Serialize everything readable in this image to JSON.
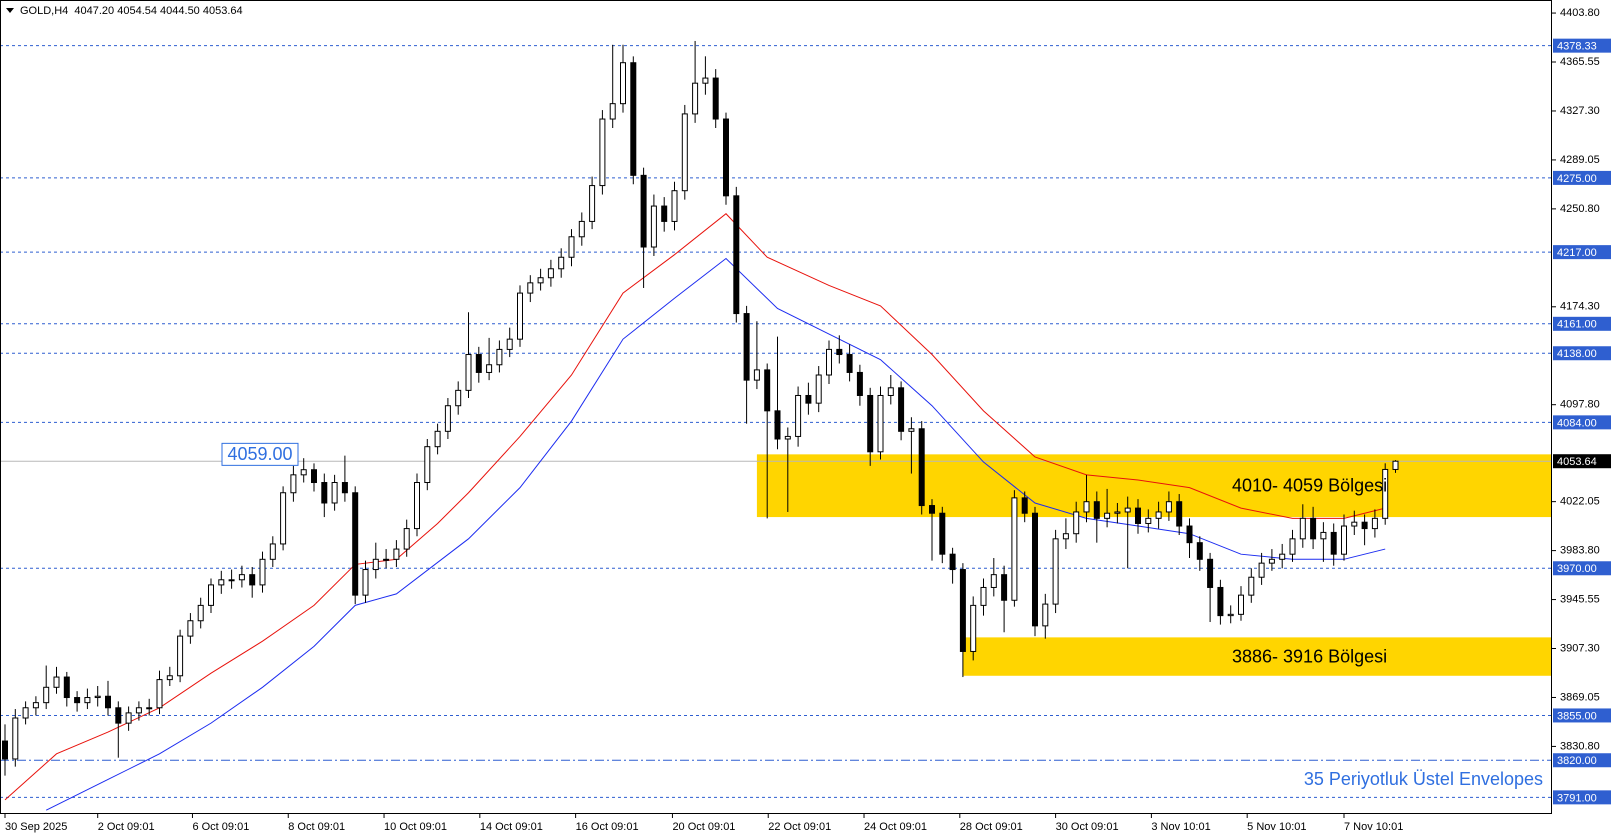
{
  "chart_data": {
    "type": "candlestick",
    "header": "GOLD,H4  4047.20 4054.54 4044.50 4053.64",
    "open": [
      3835,
      3821,
      3853,
      3861,
      3865,
      3877,
      3885,
      3869,
      3865,
      3869,
      3870,
      3861,
      3849,
      3857,
      3861,
      3861,
      3883,
      3886,
      3917,
      3929,
      3941,
      3957,
      3961,
      3961,
      3965,
      3957,
      3977,
      3989,
      4029,
      4043,
      4047,
      4037,
      4021,
      4037,
      4029,
      3949,
      3969,
      3977,
      3977,
      3985,
      4001,
      4037,
      4065,
      4077,
      4097,
      4109,
      4137,
      4123,
      4129,
      4141,
      4149,
      4185,
      4193,
      4197,
      4204,
      4213,
      4229,
      4241,
      4269,
      4321,
      4333,
      4365,
      4277,
      4221,
      4253,
      4241,
      4265,
      4325,
      4349,
      4353,
      4321,
      4261,
      4169,
      4117,
      4125,
      4093,
      4071,
      4073,
      4105,
      4099,
      4121,
      4141,
      4137,
      4123,
      4105,
      4061,
      4105,
      4111,
      4077,
      4079,
      4019,
      4013,
      3981,
      3969,
      3905,
      3941,
      3955,
      3965,
      3945,
      4025,
      4013,
      3925,
      3942,
      3993,
      3997,
      4014,
      4022,
      4009,
      4013,
      4014,
      4017,
      4005,
      4009,
      4014,
      4022,
      4003,
      3990,
      3977,
      3955,
      3933,
      3934,
      3949,
      3963,
      3974,
      3977,
      3981,
      3993,
      4009,
      3993,
      3998,
      3981,
      4003,
      4006,
      4001,
      4009,
      4047.2
    ],
    "high": [
      3848,
      3860,
      3866,
      3870,
      3894,
      3893,
      3889,
      3874,
      3876,
      3878,
      3882,
      3866,
      3862,
      3866,
      3868,
      3890,
      3893,
      3922,
      3935,
      3947,
      3962,
      3968,
      3969,
      3972,
      3971,
      3983,
      3995,
      4034,
      4050,
      4056,
      4052,
      4044,
      4043,
      4058,
      4034,
      3976,
      3990,
      3985,
      3992,
      4008,
      4044,
      4071,
      4083,
      4103,
      4116,
      4170,
      4143,
      4150,
      4148,
      4158,
      4191,
      4199,
      4204,
      4211,
      4220,
      4235,
      4248,
      4276,
      4328,
      4379,
      4379,
      4370,
      4283,
      4262,
      4260,
      4272,
      4332,
      4382,
      4370,
      4360,
      4326,
      4268,
      4175,
      4163,
      4130,
      4151,
      4080,
      4112,
      4115,
      4128,
      4148,
      4152,
      4145,
      4129,
      4111,
      4112,
      4121,
      4116,
      4088,
      4085,
      4024,
      4018,
      3986,
      3974,
      3948,
      3962,
      3978,
      3972,
      4031,
      4030,
      4018,
      3950,
      4000,
      4009,
      4022,
      4043,
      4030,
      4032,
      4021,
      4026,
      4024,
      4016,
      4022,
      4030,
      4028,
      4009,
      3995,
      3982,
      3961,
      3941,
      3956,
      3970,
      3982,
      3985,
      3989,
      4000,
      4020,
      4018,
      4006,
      4005,
      4012,
      4015,
      4012,
      4016,
      4052,
      4054.54
    ],
    "low": [
      3808,
      3815,
      3848,
      3855,
      3860,
      3872,
      3862,
      3858,
      3860,
      3862,
      3855,
      3822,
      3843,
      3851,
      3855,
      3856,
      3878,
      3881,
      3911,
      3923,
      3935,
      3950,
      3954,
      3955,
      3947,
      3951,
      3971,
      3984,
      4022,
      4037,
      4030,
      4010,
      4015,
      4022,
      3942,
      3943,
      3962,
      3970,
      3971,
      3979,
      3995,
      4031,
      4059,
      4071,
      4090,
      4103,
      4115,
      4117,
      4123,
      4135,
      4143,
      4178,
      4187,
      4190,
      4197,
      4206,
      4222,
      4235,
      4262,
      4314,
      4326,
      4270,
      4189,
      4214,
      4233,
      4234,
      4258,
      4318,
      4340,
      4314,
      4254,
      4162,
      4083,
      4110,
      4009,
      4063,
      4014,
      4065,
      4090,
      4092,
      4114,
      4130,
      4116,
      4097,
      4050,
      4055,
      4098,
      4070,
      4044,
      4012,
      3976,
      3974,
      3958,
      3885,
      3898,
      3933,
      3948,
      3920,
      3940,
      4006,
      3917,
      3915,
      3935,
      3985,
      3990,
      4006,
      3990,
      4002,
      4005,
      3970,
      3997,
      3998,
      4001,
      4007,
      3996,
      3978,
      3968,
      3928,
      3926,
      3927,
      3929,
      3943,
      3957,
      3968,
      3970,
      3975,
      3986,
      3985,
      3975,
      3972,
      3976,
      3996,
      3988,
      3994,
      4004,
      4044.5
    ],
    "close": [
      3821,
      3853,
      3861,
      3865,
      3877,
      3885,
      3869,
      3865,
      3869,
      3870,
      3861,
      3849,
      3857,
      3861,
      3861,
      3883,
      3886,
      3917,
      3929,
      3941,
      3957,
      3961,
      3961,
      3965,
      3957,
      3977,
      3989,
      4029,
      4043,
      4047,
      4037,
      4021,
      4037,
      4029,
      3949,
      3969,
      3977,
      3977,
      3985,
      4001,
      4037,
      4065,
      4077,
      4097,
      4109,
      4137,
      4123,
      4129,
      4141,
      4149,
      4185,
      4193,
      4197,
      4204,
      4213,
      4229,
      4241,
      4269,
      4321,
      4333,
      4365,
      4277,
      4221,
      4253,
      4241,
      4265,
      4325,
      4349,
      4353,
      4321,
      4261,
      4169,
      4117,
      4125,
      4093,
      4071,
      4073,
      4105,
      4099,
      4121,
      4141,
      4137,
      4123,
      4105,
      4061,
      4105,
      4111,
      4077,
      4079,
      4019,
      4013,
      3981,
      3969,
      3905,
      3941,
      3955,
      3965,
      3945,
      4025,
      4013,
      3925,
      3942,
      3993,
      3997,
      4014,
      4022,
      4009,
      4013,
      4014,
      4017,
      4005,
      4009,
      4014,
      4022,
      4003,
      3990,
      3977,
      3955,
      3933,
      3934,
      3949,
      3963,
      3974,
      3977,
      3981,
      3993,
      4009,
      3993,
      3998,
      3981,
      4003,
      4006,
      4001,
      4009,
      4047.2,
      4053.64
    ],
    "ylim": [
      3778,
      4414
    ],
    "yticks": [
      {
        "value": 4403.8,
        "label": "4403.80"
      },
      4365.55,
      {
        "value": 4327.3,
        "label": "4327.30"
      },
      4289.05,
      {
        "value": 4250.8,
        "label": "4250.80"
      },
      {
        "value": 4174.3,
        "label": "4174.30"
      },
      {
        "value": 4097.8,
        "label": "4097.80"
      },
      4022.05,
      {
        "value": 3983.8,
        "label": "3983.80"
      },
      3945.55,
      {
        "value": 3907.3,
        "label": "3907.30"
      },
      3869.05,
      {
        "value": 3830.8,
        "label": "3830.80"
      }
    ],
    "xticks": [
      {
        "value": 0,
        "label": "30 Sep 2025"
      },
      {
        "value": 9,
        "label": "2 Oct 09:01"
      },
      {
        "value": 18.2,
        "label": "6 Oct 09:01"
      },
      {
        "value": 27.5,
        "label": "8 Oct 09:01"
      },
      {
        "value": 36.8,
        "label": "10 Oct 09:01"
      },
      {
        "value": 46.1,
        "label": "14 Oct 09:01"
      },
      {
        "value": 55.4,
        "label": "16 Oct 09:01"
      },
      {
        "value": 64.8,
        "label": "20 Oct 09:01"
      },
      {
        "value": 74.1,
        "label": "22 Oct 09:01"
      },
      {
        "value": 83.4,
        "label": "24 Oct 09:01"
      },
      {
        "value": 92.7,
        "label": "28 Oct 09:01"
      },
      {
        "value": 102,
        "label": "30 Oct 09:01"
      },
      {
        "value": 111.3,
        "label": "3 Nov 10:01"
      },
      {
        "value": 120.6,
        "label": "5 Nov 10:01"
      },
      {
        "value": 130,
        "label": "7 Nov 10:01"
      }
    ],
    "envelopes": [
      {
        "color": "#e8120c",
        "x": [
          0,
          5,
          10,
          15,
          20,
          25,
          30,
          34,
          38,
          42,
          45,
          50,
          55,
          60,
          65,
          70,
          74,
          80,
          85,
          90,
          95,
          100,
          105,
          110,
          115,
          120,
          125,
          130,
          134
        ],
        "values": [
          3789,
          3825,
          3842,
          3861,
          3888,
          3913,
          3941,
          3973,
          3977,
          4005,
          4029,
          4073,
          4121,
          4185,
          4215,
          4247,
          4213,
          4191,
          4175,
          4137,
          4093,
          4057,
          4043,
          4039,
          4033,
          4017,
          4009,
          4009,
          4017
        ]
      },
      {
        "color": "#1c2cf0",
        "x": [
          4,
          10,
          15,
          20,
          25,
          30,
          34,
          38,
          45,
          50,
          55,
          60,
          65,
          70,
          75,
          80,
          85,
          90,
          95,
          100,
          105,
          110,
          115,
          120,
          125,
          130,
          134
        ],
        "values": [
          3781,
          3805,
          3825,
          3849,
          3877,
          3909,
          3941,
          3950,
          3993,
          4033,
          4085,
          4149,
          4181,
          4212,
          4173,
          4153,
          4133,
          4097,
          4053,
          4021,
          4009,
          4003,
          3997,
          3981,
          3977,
          3977,
          3985
        ]
      }
    ],
    "levels": [
      4378.33,
      {
        "value": 4275,
        "label": "4275.00"
      },
      {
        "value": 4217,
        "label": "4217.00"
      },
      {
        "value": 4161,
        "label": "4161.00"
      },
      {
        "value": 4138,
        "label": "4138.00"
      },
      {
        "value": 4084,
        "label": "4084.00"
      },
      {
        "value": 3970,
        "label": "3970.00"
      },
      {
        "value": 3855,
        "label": "3855.00"
      },
      {
        "value": 3820,
        "label": "3820.00",
        "style": "dashdot"
      },
      {
        "value": 3791,
        "label": "3791.00"
      }
    ],
    "level_color": "#2f5fd0",
    "last_price": 4053.64,
    "marker": {
      "value": 4059,
      "label": "4059.00"
    },
    "zones": [
      {
        "start": 73,
        "low": 4010,
        "high": 4059,
        "label": "4010- 4059 Bölgesi"
      },
      {
        "start": 93,
        "low": 3886,
        "high": 3916,
        "label": "3886- 3916 Bölgesi"
      }
    ],
    "zone_color": "#ffd500",
    "annotation": "35 Periyotluk Üstel Envelopes"
  }
}
